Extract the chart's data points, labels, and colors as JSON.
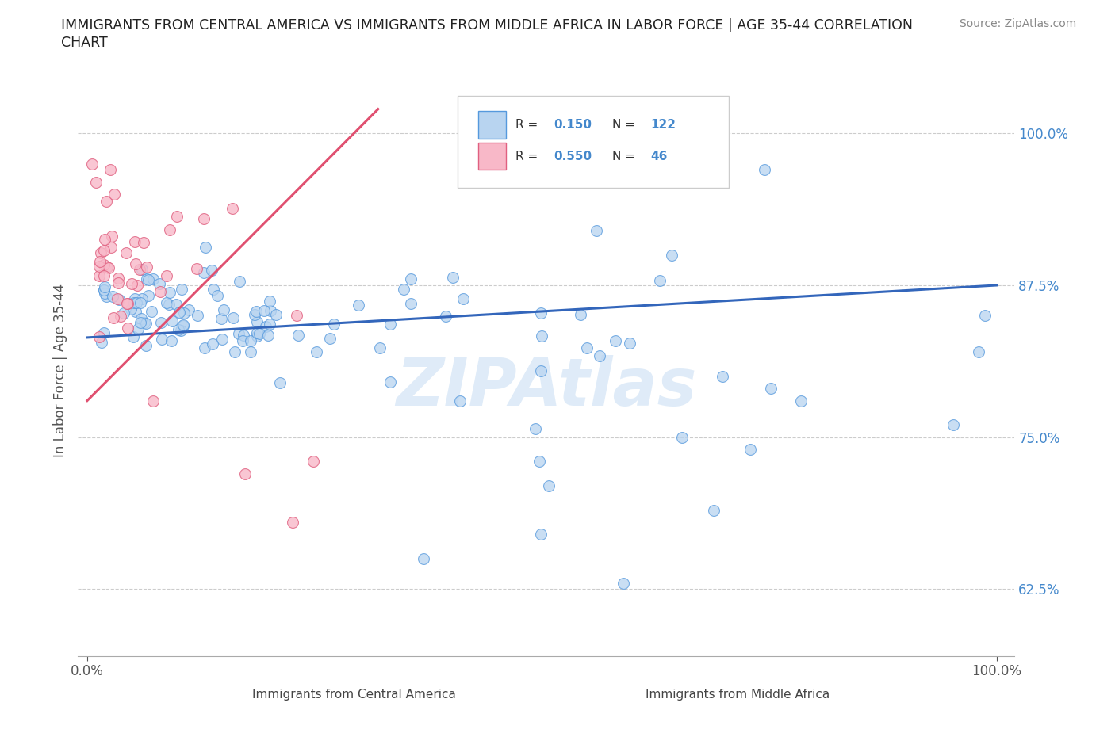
{
  "title_line1": "IMMIGRANTS FROM CENTRAL AMERICA VS IMMIGRANTS FROM MIDDLE AFRICA IN LABOR FORCE | AGE 35-44 CORRELATION",
  "title_line2": "CHART",
  "source_text": "Source: ZipAtlas.com",
  "ylabel": "In Labor Force | Age 35-44",
  "x_tick_labels": [
    "0.0%",
    "100.0%"
  ],
  "y_tick_labels": [
    "62.5%",
    "75.0%",
    "87.5%",
    "100.0%"
  ],
  "y_tick_values": [
    0.625,
    0.75,
    0.875,
    1.0
  ],
  "watermark": "ZIPAtlas",
  "color_blue_fill": "#b8d4f0",
  "color_blue_edge": "#5599dd",
  "color_pink_fill": "#f8b8c8",
  "color_pink_edge": "#e06080",
  "line_color_blue": "#3366bb",
  "line_color_pink": "#e05070",
  "background_color": "#ffffff",
  "grid_color": "#cccccc",
  "title_color": "#222222",
  "tick_color_blue": "#4488cc",
  "legend_label1": "Immigrants from Central America",
  "legend_label2": "Immigrants from Middle Africa",
  "blue_line_x0": 0.0,
  "blue_line_y0": 0.832,
  "blue_line_x1": 1.0,
  "blue_line_y1": 0.875,
  "pink_line_x0": 0.0,
  "pink_line_y0": 0.78,
  "pink_line_x1": 0.32,
  "pink_line_y1": 1.02,
  "xlim_lo": -0.01,
  "xlim_hi": 1.02,
  "ylim_lo": 0.57,
  "ylim_hi": 1.04
}
